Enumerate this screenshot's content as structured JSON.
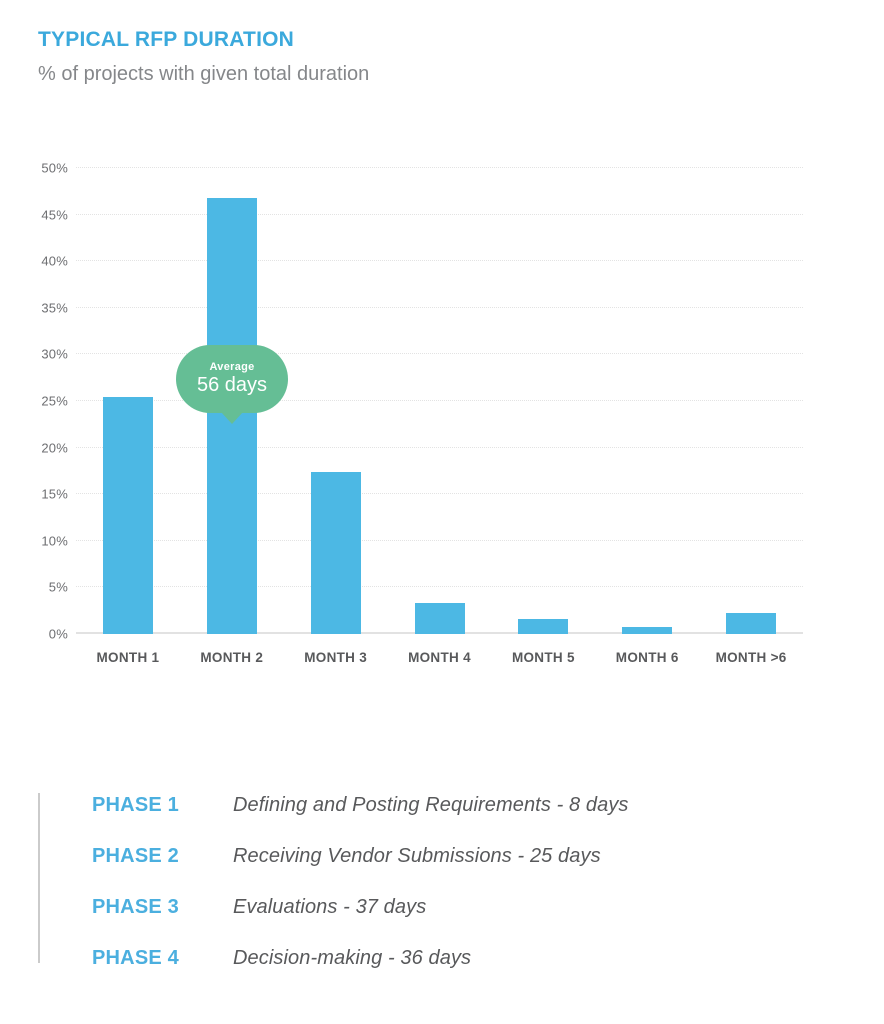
{
  "header": {
    "title": "TYPICAL RFP DURATION",
    "subtitle": "% of projects with given total duration"
  },
  "chart_data": {
    "type": "bar",
    "title": "TYPICAL RFP DURATION",
    "subtitle": "% of projects with given total duration",
    "categories": [
      "MONTH 1",
      "MONTH 2",
      "MONTH 3",
      "MONTH 4",
      "MONTH 5",
      "MONTH 6",
      "MONTH >6"
    ],
    "values": [
      25.4,
      46.8,
      17.4,
      3.3,
      1.6,
      0.7,
      2.3
    ],
    "unit": "%",
    "ylim": [
      0,
      50
    ],
    "yticks": [
      0,
      5,
      10,
      15,
      20,
      25,
      30,
      35,
      40,
      45,
      50
    ],
    "ytick_suffix": "%",
    "grid": "horizontal-dotted",
    "legend_position": "none",
    "bar_color": "#4CB8E4",
    "annotation": {
      "label": "Average",
      "value": "56 days",
      "attached_to": "MONTH 2",
      "color": "#65BE95"
    }
  },
  "phases": {
    "items": [
      {
        "label": "PHASE 1",
        "description": "Defining and Posting Requirements - 8 days"
      },
      {
        "label": "PHASE 2",
        "description": "Receiving Vendor Submissions - 25 days"
      },
      {
        "label": "PHASE 3",
        "description": "Evaluations - 37 days"
      },
      {
        "label": "PHASE 4",
        "description": "Decision-making - 36 days"
      }
    ]
  },
  "colors": {
    "title_blue": "#3BA9DC",
    "bar_blue": "#4CB8E4",
    "bubble_green": "#65BE95",
    "subtitle_gray": "#85878A",
    "text_dark_gray": "#58595B",
    "tick_gray": "#6D6E71",
    "gridline_gray": "#E3E3E3",
    "rule_gray": "#CBCBCB"
  }
}
